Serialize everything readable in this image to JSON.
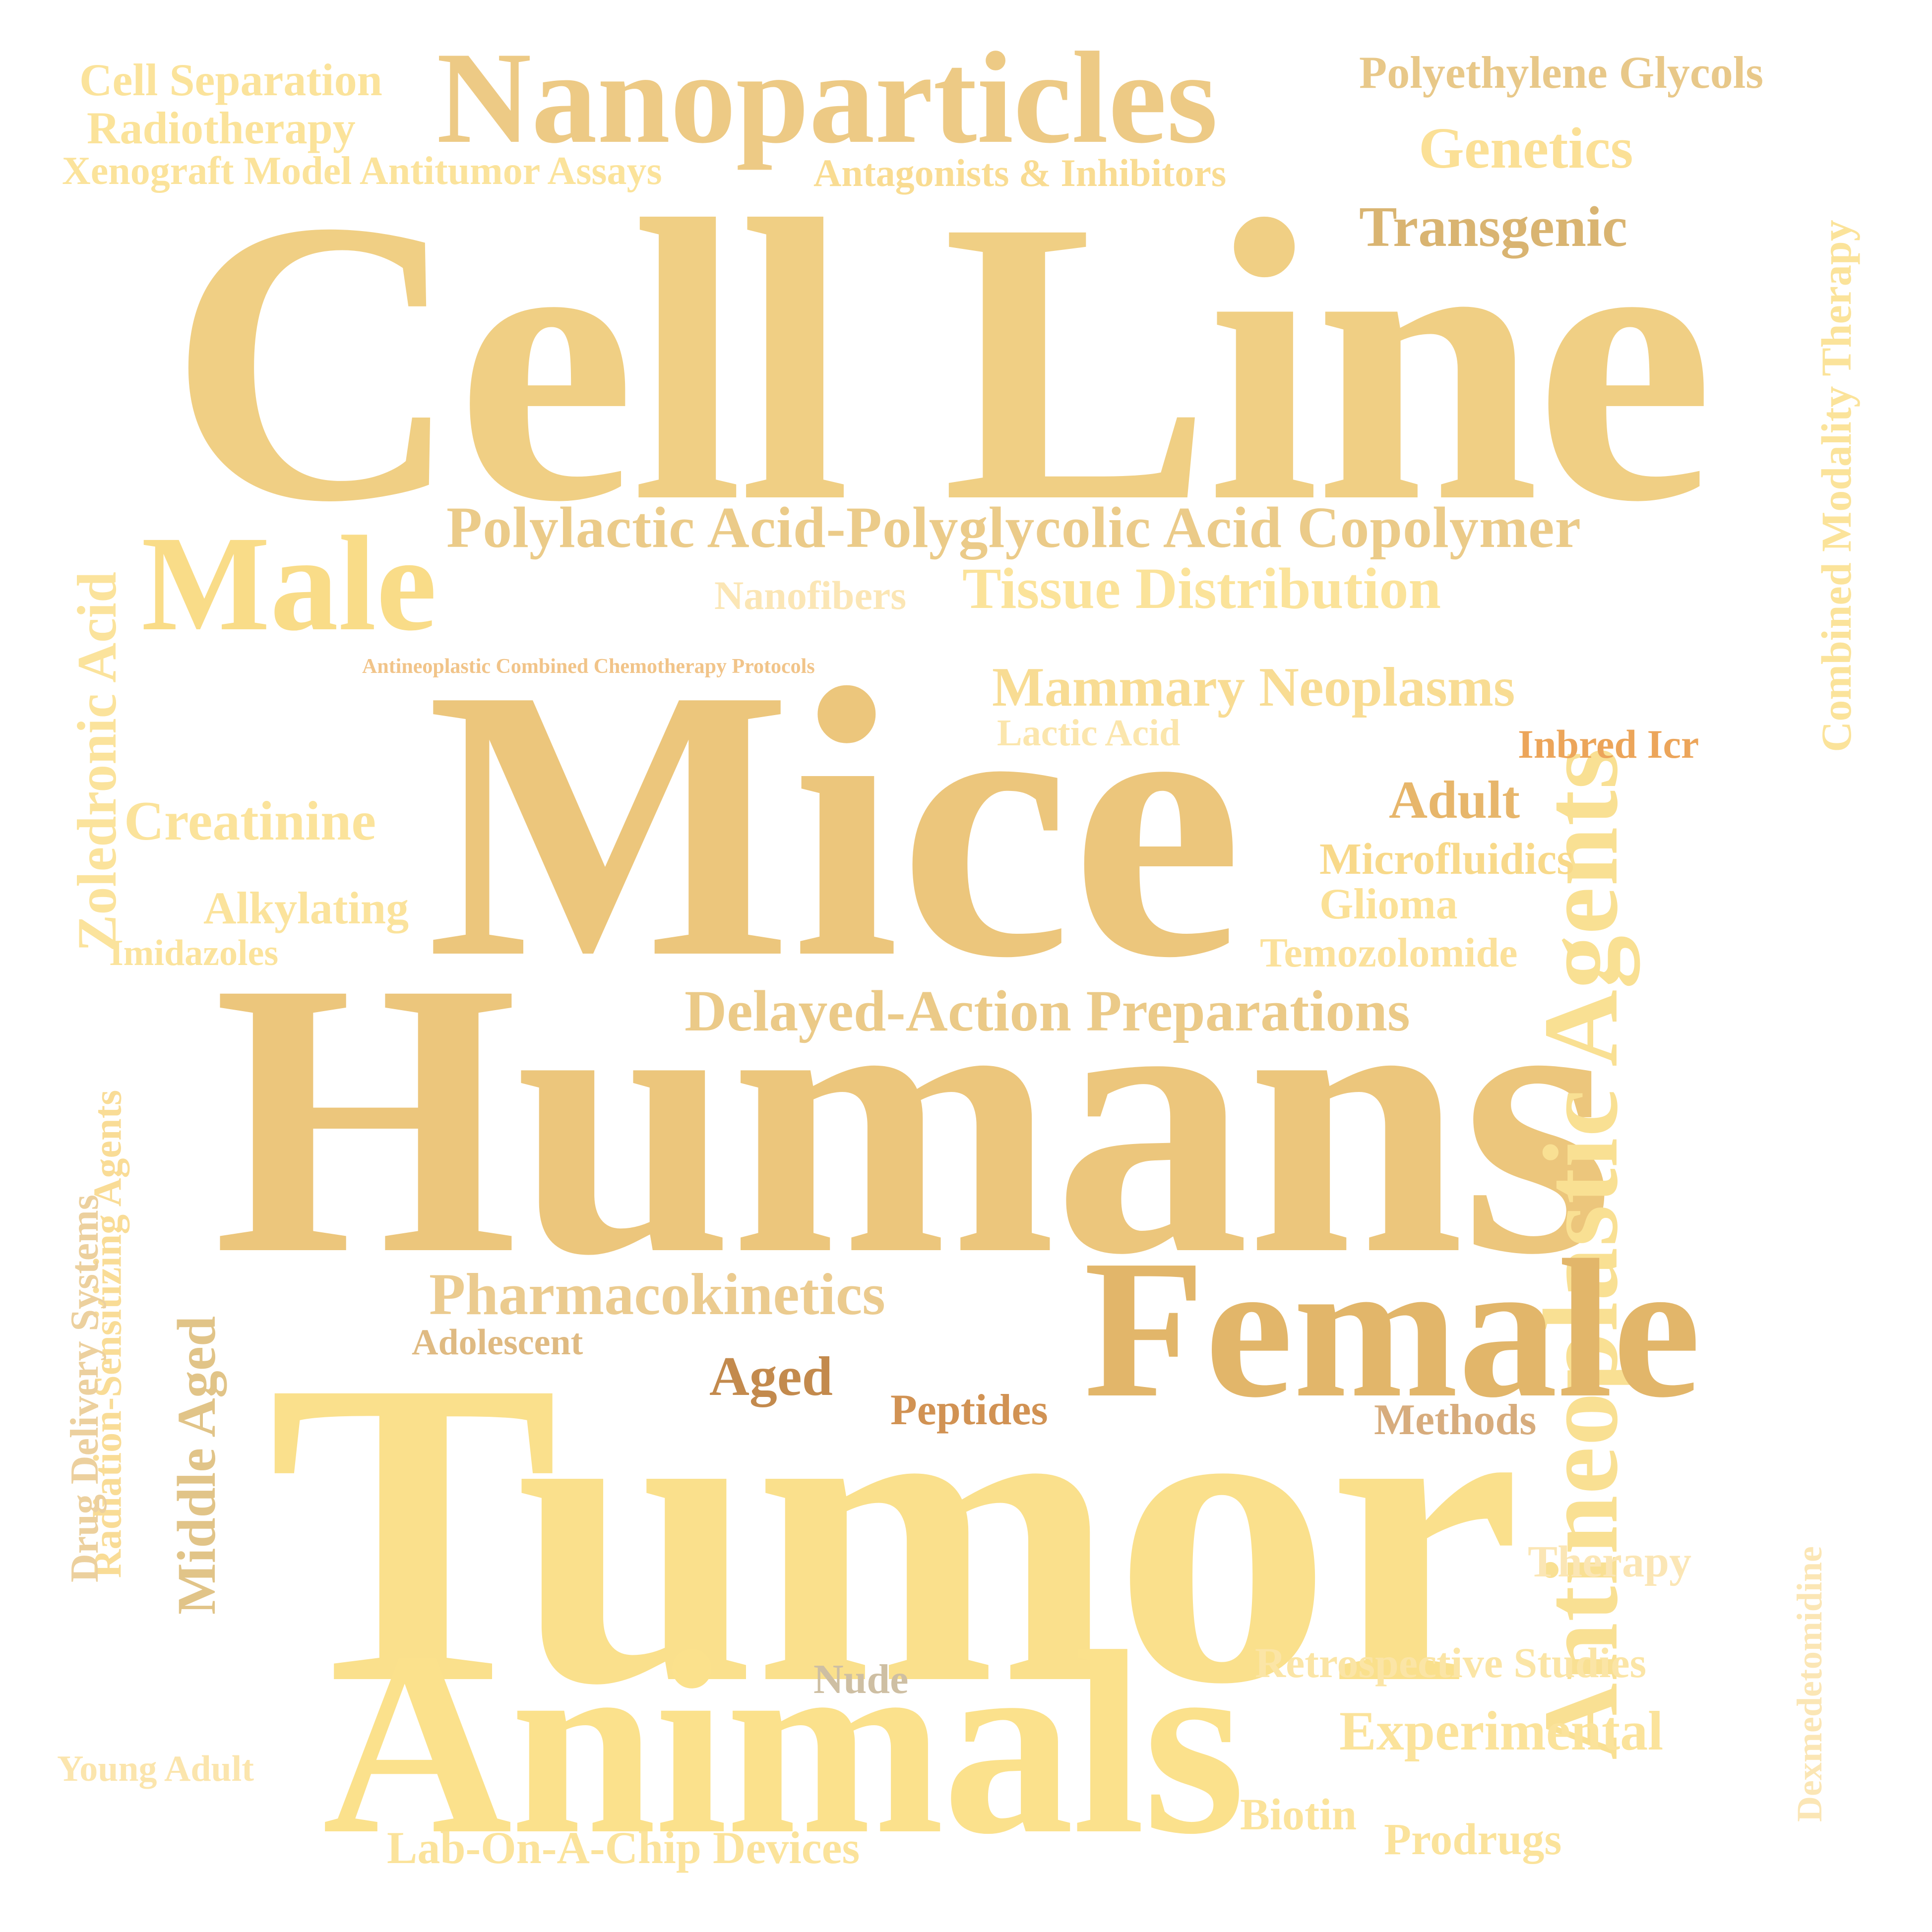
{
  "background": "#ffffff",
  "words": [
    {
      "text": "Cell Line",
      "color": "#f0cf84"
    },
    {
      "text": "Mice",
      "color": "#ecc67c"
    },
    {
      "text": "Humans",
      "color": "#ecc67c"
    },
    {
      "text": "Tumor",
      "color": "#fae08c"
    },
    {
      "text": "Animals",
      "color": "#fbe18c"
    },
    {
      "text": "Antineoplastic Agents",
      "color": "#f9e093"
    },
    {
      "text": "Nanoparticles",
      "color": "#edca85"
    },
    {
      "text": "Female",
      "color": "#e2b66a"
    },
    {
      "text": "Male",
      "color": "#f9dc88"
    },
    {
      "text": "Polylactic Acid-Polyglycolic Acid Copolymer",
      "color": "#ebcb89"
    },
    {
      "text": "Tissue Distribution",
      "color": "#fbe39a"
    },
    {
      "text": "Delayed-Action Preparations",
      "color": "#ebca88"
    },
    {
      "text": "Pharmacokinetics",
      "color": "#ebcb8f"
    },
    {
      "text": "Mammary Neoplasms",
      "color": "#f8dc93"
    },
    {
      "text": "Genetics",
      "color": "#fbe096"
    },
    {
      "text": "Transgenic",
      "color": "#d9b471"
    },
    {
      "text": "Polyethylene Glycols",
      "color": "#e8c889"
    },
    {
      "text": "Cell Separation",
      "color": "#fbe39b"
    },
    {
      "text": "Radiotherapy",
      "color": "#fbe39a"
    },
    {
      "text": "Xenograft Model Antitumor Assays",
      "color": "#fbe39b"
    },
    {
      "text": "Antagonists & Inhibitors",
      "color": "#f9dc92"
    },
    {
      "text": "Combined Modality Therapy",
      "color": "#fbe39a"
    },
    {
      "text": "Zoledronic Acid",
      "color": "#fbe39c"
    },
    {
      "text": "Nanofibers",
      "color": "#fbe6b5"
    },
    {
      "text": "Antineoplastic Combined Chemotherapy Protocols",
      "color": "#f1c489"
    },
    {
      "text": "Lactic Acid",
      "color": "#fbe6ad"
    },
    {
      "text": "Inbred Icr",
      "color": "#eca55a"
    },
    {
      "text": "Adult",
      "color": "#e7b66b"
    },
    {
      "text": "Creatinine",
      "color": "#fbe39b"
    },
    {
      "text": "Microfluidics",
      "color": "#f8d98a"
    },
    {
      "text": "Glioma",
      "color": "#fbe197"
    },
    {
      "text": "Alkylating",
      "color": "#fbe39c"
    },
    {
      "text": "Imidazoles",
      "color": "#fbe39c"
    },
    {
      "text": "Temozolomide",
      "color": "#fbe19b"
    },
    {
      "text": "Radiation-Sensitizing Agents",
      "color": "#f9dc96"
    },
    {
      "text": "Drug Delivery Systems",
      "color": "#ecd09e"
    },
    {
      "text": "Middle Aged",
      "color": "#e1c488"
    },
    {
      "text": "Adolescent",
      "color": "#dfba82"
    },
    {
      "text": "Aged",
      "color": "#c38a4d"
    },
    {
      "text": "Peptides",
      "color": "#d19253"
    },
    {
      "text": "Methods",
      "color": "#d7ac7d"
    },
    {
      "text": "Therapy",
      "color": "#fbe6b5"
    },
    {
      "text": "Dexmedetomidine",
      "color": "#fbe6b5"
    },
    {
      "text": "Retrospective Studies",
      "color": "#fbe5a6"
    },
    {
      "text": "Nude",
      "color": "#cebfa3"
    },
    {
      "text": "Experimental",
      "color": "#fbe39b"
    },
    {
      "text": "Young Adult",
      "color": "#fbe5ad"
    },
    {
      "text": "Lab-On-A-Chip Devices",
      "color": "#fbe39b"
    },
    {
      "text": "Biotin",
      "color": "#fbe39b"
    },
    {
      "text": "Prodrugs",
      "color": "#fbe39b"
    }
  ]
}
